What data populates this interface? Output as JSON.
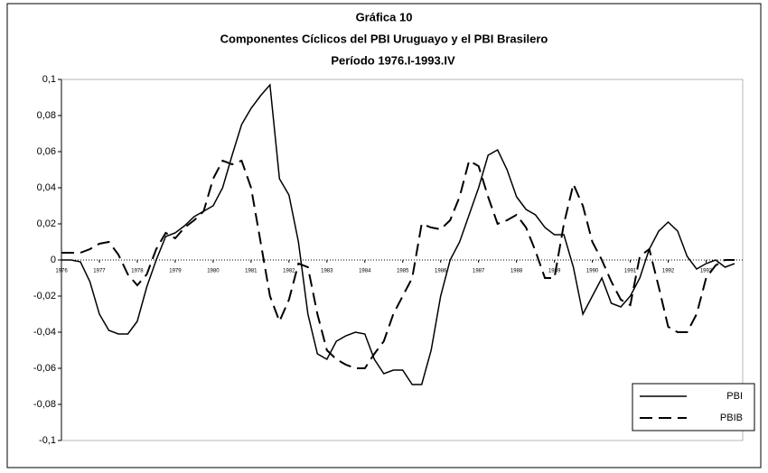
{
  "chart_data": {
    "type": "line",
    "title": "Gráfica 10",
    "subtitle": "Componentes Cíclicos del PBI Uruguayo y el PBI Brasilero",
    "period": "Período 1976.I-1993.IV",
    "categories": [
      "1976",
      null,
      null,
      null,
      "1977",
      null,
      null,
      null,
      "1978",
      null,
      null,
      null,
      "1979",
      null,
      null,
      null,
      "1980",
      null,
      null,
      null,
      "1981",
      null,
      null,
      null,
      "1982",
      null,
      null,
      null,
      "1983",
      null,
      null,
      null,
      "1984",
      null,
      null,
      null,
      "1985",
      null,
      null,
      null,
      "1986",
      null,
      null,
      null,
      "1987",
      null,
      null,
      null,
      "1988",
      null,
      null,
      null,
      "1989",
      null,
      null,
      null,
      "1990",
      null,
      null,
      null,
      "1991",
      null,
      null,
      null,
      "1992",
      null,
      null,
      null,
      "1993",
      null,
      null,
      null
    ],
    "series": [
      {
        "name": "PBI",
        "color": "#000000",
        "line_style": "solid",
        "values": [
          0,
          0,
          -0.001,
          -0.012,
          -0.03,
          -0.039,
          -0.041,
          -0.041,
          -0.034,
          -0.015,
          0,
          0.013,
          0.015,
          0.019,
          0.024,
          0.027,
          0.03,
          0.04,
          0.058,
          0.075,
          0.084,
          0.091,
          0.097,
          0.045,
          0.036,
          0.01,
          -0.03,
          -0.052,
          -0.055,
          -0.045,
          -0.042,
          -0.04,
          -0.041,
          -0.055,
          -0.063,
          -0.061,
          -0.061,
          -0.069,
          -0.069,
          -0.05,
          -0.02,
          0,
          0.01,
          0.025,
          0.04,
          0.058,
          0.061,
          0.05,
          0.035,
          0.028,
          0.025,
          0.018,
          0.014,
          0.014,
          -0.004,
          -0.03,
          -0.02,
          -0.01,
          -0.024,
          -0.026,
          -0.02,
          -0.01,
          0.006,
          0.016,
          0.021,
          0.016,
          0.002,
          -0.005,
          -0.002,
          0,
          -0.004,
          -0.002
        ]
      },
      {
        "name": "PBIB",
        "color": "#000000",
        "line_style": "dashed",
        "values": [
          0.004,
          0.004,
          0.004,
          0.006,
          0.009,
          0.01,
          0.003,
          -0.008,
          -0.014,
          -0.008,
          0.006,
          0.015,
          0.012,
          0.018,
          0.022,
          0.027,
          0.045,
          0.055,
          0.053,
          0.055,
          0.04,
          0.01,
          -0.02,
          -0.034,
          -0.022,
          -0.002,
          -0.004,
          -0.03,
          -0.05,
          -0.055,
          -0.058,
          -0.06,
          -0.06,
          -0.052,
          -0.045,
          -0.03,
          -0.02,
          -0.01,
          0.02,
          0.018,
          0.017,
          0.022,
          0.035,
          0.055,
          0.052,
          0.035,
          0.02,
          0.022,
          0.025,
          0.018,
          0.005,
          -0.01,
          -0.01,
          0.02,
          0.042,
          0.03,
          0.01,
          0,
          -0.012,
          -0.022,
          -0.025,
          0.002,
          0.006,
          -0.015,
          -0.037,
          -0.04,
          -0.04,
          -0.03,
          -0.01,
          -0.003,
          0,
          0
        ]
      }
    ],
    "ylim": [
      -0.1,
      0.1
    ],
    "yticks": [
      {
        "value": 0.1,
        "label": "0,1"
      },
      {
        "value": 0.08,
        "label": "0,08"
      },
      {
        "value": 0.06,
        "label": "0,06"
      },
      {
        "value": 0.04,
        "label": "0,04"
      },
      {
        "value": 0.02,
        "label": "0,02"
      },
      0,
      {
        "value": -0.02,
        "label": "-0,02"
      },
      {
        "value": -0.04,
        "label": "-0,04"
      },
      {
        "value": -0.06,
        "label": "-0,06"
      },
      {
        "value": -0.08,
        "label": "-0,08"
      },
      {
        "value": -0.1,
        "label": "-0,1"
      }
    ],
    "legend": "lower right"
  }
}
